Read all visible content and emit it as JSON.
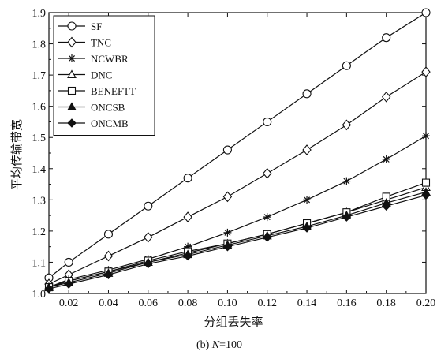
{
  "chart_data": {
    "type": "line",
    "xlabel": "分组丢失率",
    "ylabel": "平均传输带宽",
    "caption_prefix": "(b) ",
    "caption_var": "N",
    "caption_suffix": "=100",
    "x_ticks": [
      "0.02",
      "0.04",
      "0.06",
      "0.08",
      "0.10",
      "0.12",
      "0.14",
      "0.16",
      "0.18",
      "0.20"
    ],
    "y_ticks": [
      "1.0",
      "1.1",
      "1.2",
      "1.3",
      "1.4",
      "1.5",
      "1.6",
      "1.7",
      "1.8",
      "1.9"
    ],
    "xlim": [
      0.01,
      0.2
    ],
    "ylim": [
      1.0,
      1.9
    ],
    "grid": false,
    "legend_position": "top-left",
    "x": [
      0.01,
      0.02,
      0.04,
      0.06,
      0.08,
      0.1,
      0.12,
      0.14,
      0.16,
      0.18,
      0.2
    ],
    "series": [
      {
        "name": "SF",
        "marker": "circle",
        "values": [
          1.05,
          1.1,
          1.19,
          1.28,
          1.37,
          1.46,
          1.55,
          1.64,
          1.73,
          1.82,
          1.9
        ]
      },
      {
        "name": "TNC",
        "marker": "diamond-open",
        "values": [
          1.03,
          1.06,
          1.12,
          1.18,
          1.245,
          1.31,
          1.385,
          1.46,
          1.54,
          1.63,
          1.71
        ]
      },
      {
        "name": "NCWBR",
        "marker": "asterisk",
        "values": [
          1.02,
          1.045,
          1.075,
          1.11,
          1.15,
          1.195,
          1.245,
          1.3,
          1.36,
          1.43,
          1.505
        ]
      },
      {
        "name": "DNC",
        "marker": "triangle-open",
        "values": [
          1.02,
          1.04,
          1.07,
          1.1,
          1.13,
          1.16,
          1.19,
          1.225,
          1.26,
          1.3,
          1.34
        ]
      },
      {
        "name": "BENEFTT",
        "marker": "square-open",
        "values": [
          1.02,
          1.04,
          1.07,
          1.105,
          1.135,
          1.16,
          1.19,
          1.225,
          1.26,
          1.31,
          1.355
        ]
      },
      {
        "name": "ONCSB",
        "marker": "triangle-filled",
        "values": [
          1.02,
          1.035,
          1.065,
          1.1,
          1.125,
          1.155,
          1.185,
          1.215,
          1.25,
          1.29,
          1.325
        ]
      },
      {
        "name": "ONCMB",
        "marker": "diamond-filled",
        "values": [
          1.015,
          1.03,
          1.06,
          1.095,
          1.12,
          1.15,
          1.18,
          1.21,
          1.245,
          1.28,
          1.315
        ]
      }
    ]
  }
}
